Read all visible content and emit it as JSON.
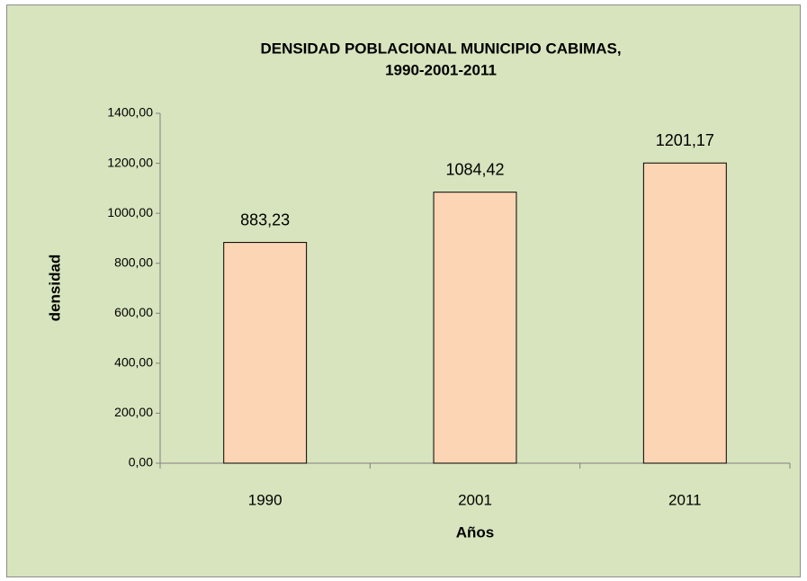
{
  "chart_data": {
    "type": "bar",
    "title": [
      "DENSIDAD POBLACIONAL  MUNICIPIO CABIMAS,",
      "1990-2001-2011"
    ],
    "x_label": "Años",
    "y_label": "densidad",
    "categories": [
      "1990",
      "2001",
      "2011"
    ],
    "values": [
      883.23,
      1084.42,
      1201.17
    ],
    "value_labels": [
      "883,23",
      "1084,42",
      "1201,17"
    ],
    "color": "#fcd5b5",
    "ylim": [
      0,
      1400
    ],
    "yticks": [
      {
        "value": 0,
        "label": "0,00"
      },
      {
        "value": 200,
        "label": "200,00"
      },
      {
        "value": 400,
        "label": "400,00"
      },
      {
        "value": 600,
        "label": "600,00"
      },
      {
        "value": 800,
        "label": "800,00"
      },
      {
        "value": 1000,
        "label": "1000,00"
      },
      {
        "value": 1200,
        "label": "1200,00"
      },
      {
        "value": 1400,
        "label": "1400,00"
      }
    ],
    "grid": false
  }
}
